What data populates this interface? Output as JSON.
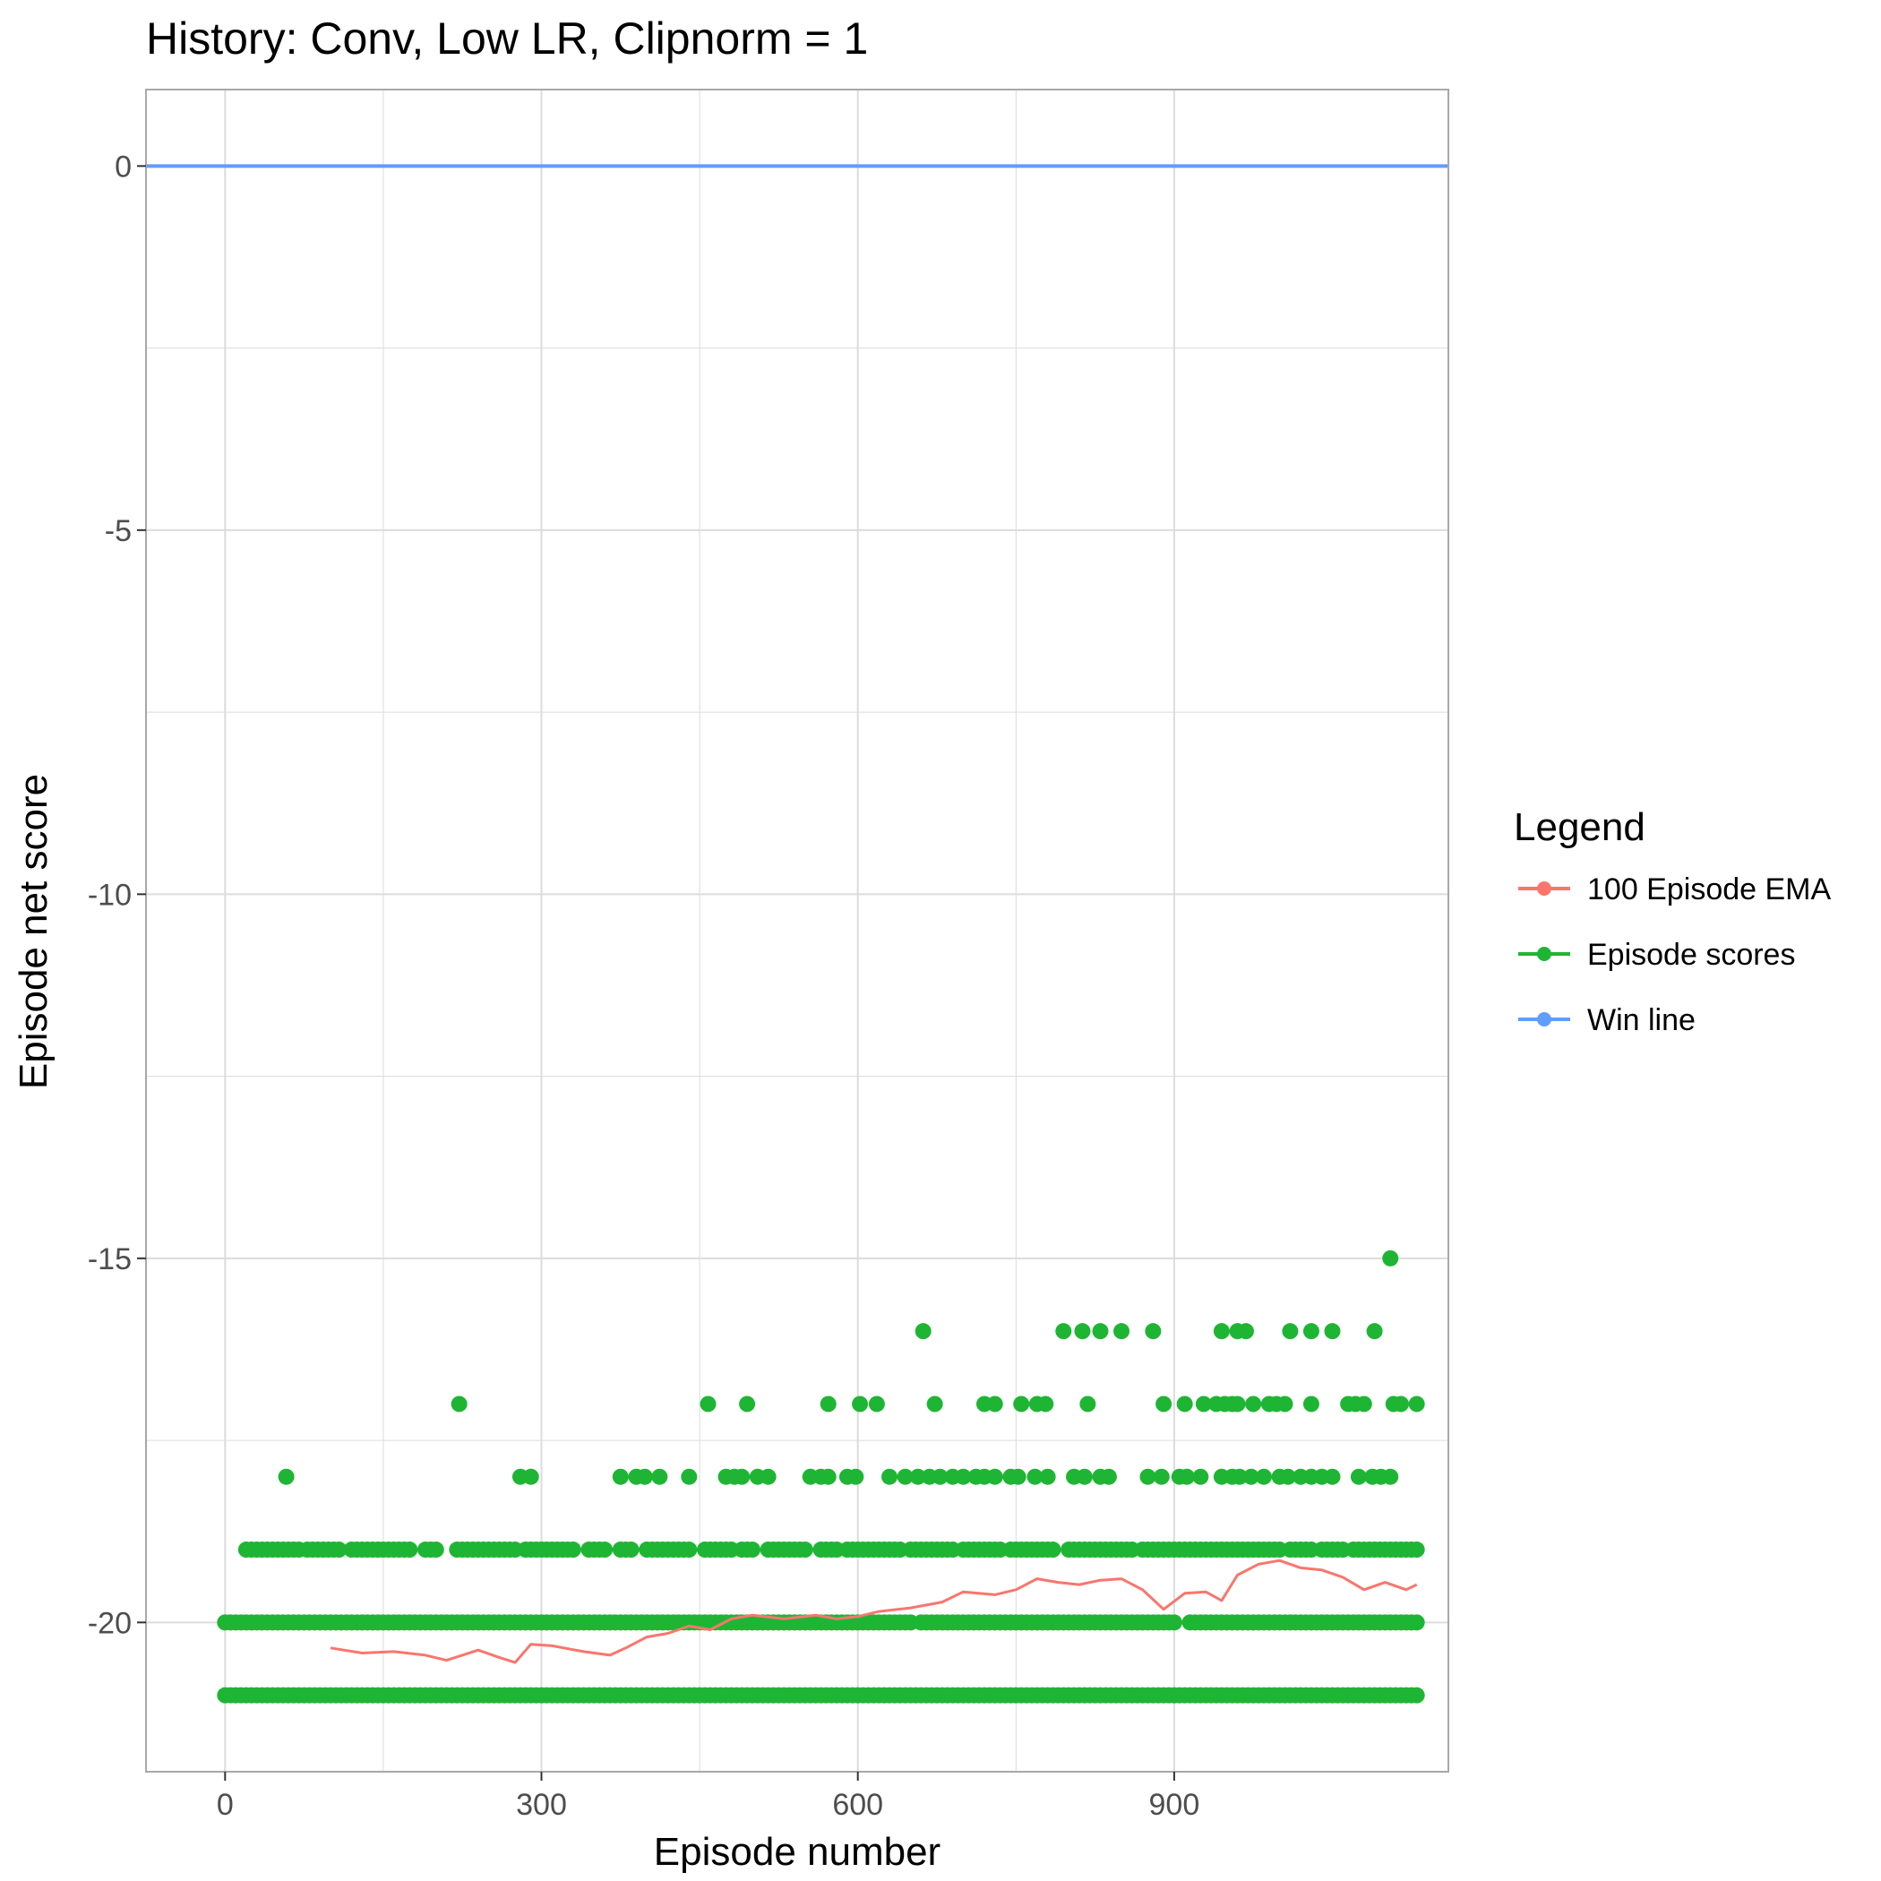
{
  "chart_data": {
    "type": "scatter",
    "title": "History: Conv, Low LR, Clipnorm = 1",
    "xlabel": "Episode number",
    "ylabel": "Episode net score",
    "xlim": [
      -75,
      1160
    ],
    "ylim": [
      -22.05,
      1.05
    ],
    "x_ticks": [
      0,
      300,
      600,
      900
    ],
    "x_tick_labels": [
      "0",
      "300",
      "600",
      "900"
    ],
    "y_ticks": [
      0,
      -5,
      -10,
      -15,
      -20
    ],
    "y_tick_labels": [
      "0",
      "-5",
      "-10",
      "-15",
      "-20"
    ],
    "grid": true,
    "legend": {
      "title": "Legend",
      "position": "right",
      "entries": [
        "100 Episode EMA",
        "Episode scores",
        "Win line"
      ]
    },
    "colors": {
      "ema": "#F8766D",
      "scores": "#1FB534",
      "win": "#619CFF",
      "grid": "#dcdcdc",
      "panel_border": "#a8a8a8"
    },
    "series": [
      {
        "name": "Win line",
        "type": "hline",
        "y": 0
      },
      {
        "name": "Episode scores",
        "type": "scatter",
        "x_range": [
          0,
          1130
        ],
        "levels": [
          {
            "y": -21,
            "x": [
              [
                0,
                1130
              ]
            ]
          },
          {
            "y": -20,
            "x": [
              [
                0,
                650
              ],
              [
                660,
                900
              ],
              [
                915,
                1130
              ]
            ]
          },
          {
            "y": -19,
            "x": [
              [
                20,
                45
              ],
              [
                50,
                70
              ],
              [
                78,
                110
              ],
              [
                120,
                155
              ],
              [
                160,
                175
              ],
              [
                190,
                200
              ],
              [
                220,
                250
              ],
              [
                255,
                275
              ],
              [
                285,
                330
              ],
              [
                345,
                360
              ],
              [
                375,
                385
              ],
              [
                400,
                440
              ],
              [
                455,
                470
              ],
              [
                475,
                480
              ],
              [
                490,
                500
              ],
              [
                515,
                550
              ],
              [
                565,
                580
              ],
              [
                590,
                640
              ],
              [
                650,
                690
              ],
              [
                700,
                735
              ],
              [
                745,
                785
              ],
              [
                800,
                820
              ],
              [
                825,
                860
              ],
              [
                870,
                910
              ],
              [
                915,
                960
              ],
              [
                965,
                975
              ],
              [
                980,
                1000
              ],
              [
                1010,
                1030
              ],
              [
                1040,
                1060
              ],
              [
                1070,
                1090
              ],
              [
                1095,
                1130
              ]
            ]
          },
          {
            "y": -18,
            "x": [
              58,
              280,
              290,
              375,
              390,
              398,
              412,
              440,
              475,
              483,
              490,
              505,
              515,
              555,
              565,
              572,
              590,
              598,
              630,
              645,
              657,
              668,
              678,
              690,
              700,
              712,
              720,
              730,
              745,
              752,
              768,
              780,
              805,
              815,
              830,
              838,
              875,
              888,
              905,
              912,
              925,
              945,
              955,
              962,
              973,
              985,
              1000,
              1008,
              1020,
              1030,
              1040,
              1050,
              1075,
              1088,
              1096,
              1105
            ]
          },
          {
            "y": -17,
            "x": [
              222,
              458,
              495,
              572,
              602,
              618,
              673,
              720,
              730,
              755,
              770,
              778,
              818,
              890,
              910,
              928,
              940,
              948,
              955,
              960,
              975,
              990,
              997,
              1005,
              1030,
              1065,
              1072,
              1080,
              1108,
              1115,
              1130
            ]
          },
          {
            "y": -16,
            "x": [
              662,
              795,
              813,
              830,
              850,
              880,
              945,
              960,
              968,
              1010,
              1030,
              1050,
              1090
            ]
          },
          {
            "y": -15,
            "x": [
              1105
            ]
          }
        ]
      },
      {
        "name": "100 Episode EMA",
        "type": "line",
        "x": [
          100,
          130,
          160,
          190,
          210,
          240,
          260,
          275,
          290,
          310,
          340,
          365,
          380,
          400,
          420,
          440,
          460,
          480,
          500,
          530,
          560,
          580,
          600,
          620,
          650,
          680,
          700,
          730,
          750,
          770,
          790,
          810,
          830,
          850,
          870,
          890,
          910,
          930,
          945,
          960,
          980,
          1000,
          1020,
          1040,
          1060,
          1080,
          1100,
          1120,
          1130
        ],
        "y": [
          -20.35,
          -20.42,
          -20.4,
          -20.45,
          -20.52,
          -20.38,
          -20.48,
          -20.55,
          -20.3,
          -20.32,
          -20.4,
          -20.45,
          -20.35,
          -20.2,
          -20.15,
          -20.05,
          -20.1,
          -19.95,
          -19.9,
          -19.95,
          -19.9,
          -19.95,
          -19.92,
          -19.85,
          -19.8,
          -19.72,
          -19.58,
          -19.62,
          -19.55,
          -19.4,
          -19.45,
          -19.48,
          -19.42,
          -19.4,
          -19.55,
          -19.82,
          -19.6,
          -19.58,
          -19.7,
          -19.35,
          -19.2,
          -19.15,
          -19.25,
          -19.28,
          -19.38,
          -19.55,
          -19.45,
          -19.55,
          -19.48
        ]
      }
    ]
  }
}
